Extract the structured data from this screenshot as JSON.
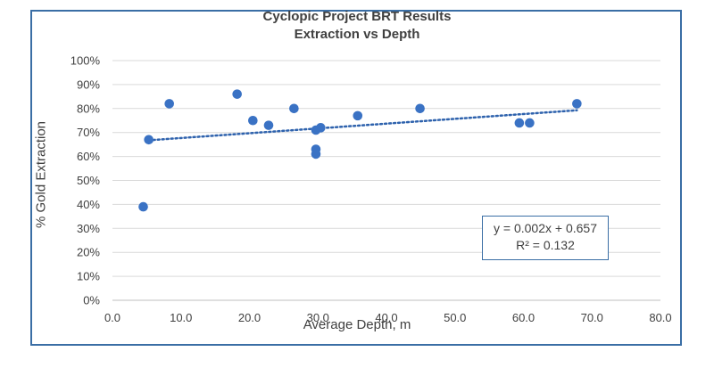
{
  "chart_data": {
    "type": "scatter",
    "title": "Cyclopic Project BRT Results",
    "subtitle": "Extraction vs Depth",
    "xlabel": "Average Depth, m",
    "ylabel": "% Gold Extraction",
    "xlim": [
      0,
      80
    ],
    "ylim": [
      0,
      1
    ],
    "x_ticks": [
      "0.0",
      "10.0",
      "20.0",
      "30.0",
      "40.0",
      "50.0",
      "60.0",
      "70.0",
      "80.0"
    ],
    "y_ticks": [
      "0%",
      "10%",
      "20%",
      "30%",
      "40%",
      "50%",
      "60%",
      "70%",
      "80%",
      "90%",
      "100%"
    ],
    "grid": "horizontal",
    "points": [
      {
        "x": 4.5,
        "y": 0.39
      },
      {
        "x": 5.3,
        "y": 0.67
      },
      {
        "x": 8.3,
        "y": 0.82
      },
      {
        "x": 18.2,
        "y": 0.86
      },
      {
        "x": 20.5,
        "y": 0.75
      },
      {
        "x": 22.8,
        "y": 0.73
      },
      {
        "x": 26.5,
        "y": 0.8
      },
      {
        "x": 29.7,
        "y": 0.71
      },
      {
        "x": 30.4,
        "y": 0.72
      },
      {
        "x": 29.7,
        "y": 0.63
      },
      {
        "x": 29.7,
        "y": 0.61
      },
      {
        "x": 35.8,
        "y": 0.77
      },
      {
        "x": 44.9,
        "y": 0.8
      },
      {
        "x": 59.4,
        "y": 0.74
      },
      {
        "x": 60.9,
        "y": 0.74
      },
      {
        "x": 67.8,
        "y": 0.82
      }
    ],
    "trendline": {
      "slope": 0.002,
      "intercept": 0.657,
      "x_range": [
        5.3,
        67.8
      ]
    },
    "equation_text": "y = 0.002x + 0.657",
    "r2_text": "R² = 0.132",
    "marker_color": "#3a72c4",
    "trend_color": "#2e62ad"
  }
}
